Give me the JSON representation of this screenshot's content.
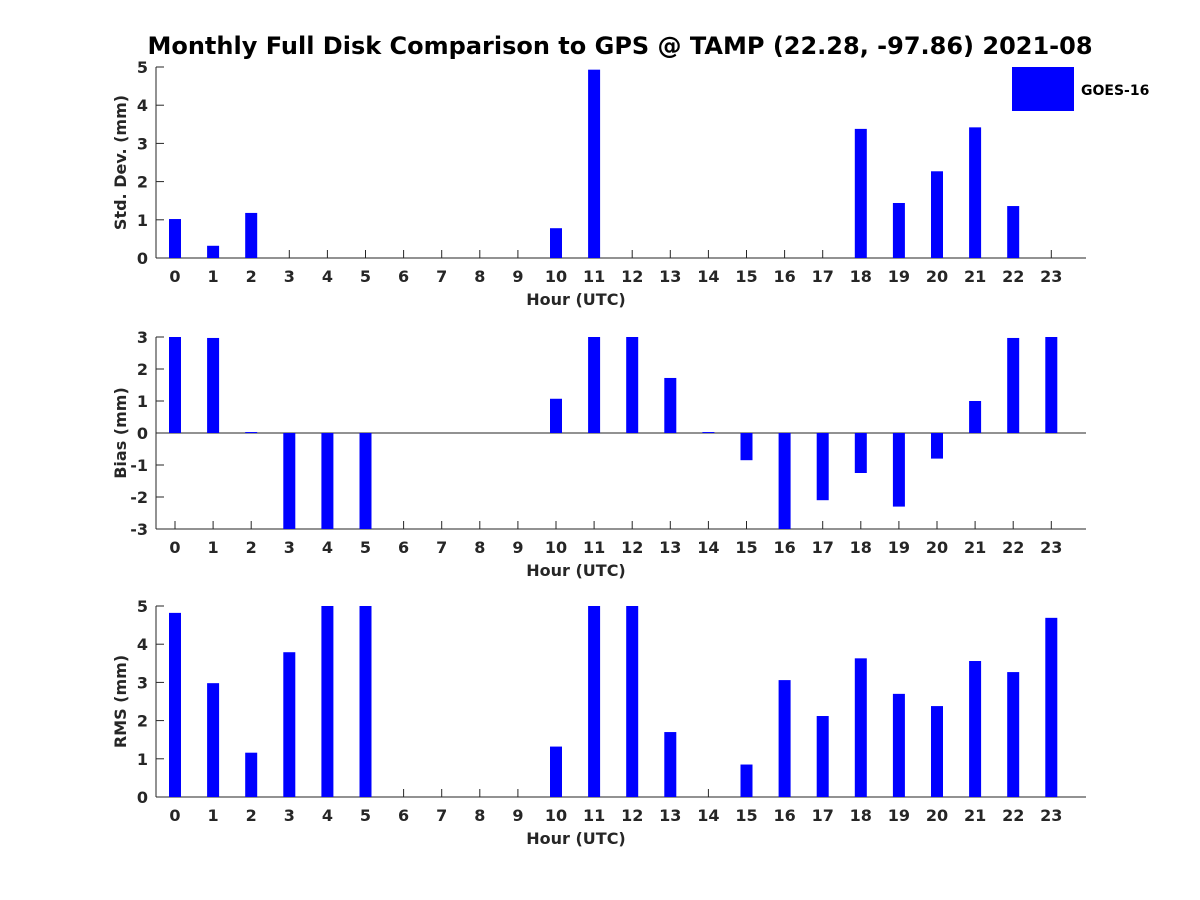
{
  "title": "Monthly Full Disk Comparison to GPS @ TAMP (22.28, -97.86) 2021-08",
  "legend": {
    "label": "GOES-16",
    "color": "#0000ff"
  },
  "chart_data": [
    {
      "type": "bar",
      "categories": [
        "0",
        "1",
        "2",
        "3",
        "4",
        "5",
        "6",
        "7",
        "8",
        "9",
        "10",
        "11",
        "12",
        "13",
        "14",
        "15",
        "16",
        "17",
        "18",
        "19",
        "20",
        "21",
        "22",
        "23"
      ],
      "series": [
        {
          "values": [
            1.02,
            0.32,
            1.18,
            null,
            null,
            null,
            null,
            null,
            null,
            null,
            0.78,
            4.93,
            null,
            null,
            null,
            null,
            null,
            null,
            3.38,
            1.44,
            2.27,
            3.42,
            1.36,
            null
          ]
        }
      ],
      "xlabel": "Hour (UTC)",
      "ylabel": "Std. Dev. (mm)",
      "ylim": [
        0,
        5
      ],
      "yticks": [
        "0",
        "1",
        "2",
        "3",
        "4",
        "5"
      ],
      "legend_position": "top-right"
    },
    {
      "type": "bar",
      "categories": [
        "0",
        "1",
        "2",
        "3",
        "4",
        "5",
        "6",
        "7",
        "8",
        "9",
        "10",
        "11",
        "12",
        "13",
        "14",
        "15",
        "16",
        "17",
        "18",
        "19",
        "20",
        "21",
        "22",
        "23"
      ],
      "series": [
        {
          "values": [
            3.0,
            2.97,
            0.03,
            -3.0,
            -3.0,
            -3.0,
            null,
            null,
            null,
            null,
            1.07,
            3.0,
            3.0,
            1.72,
            0.03,
            -0.85,
            -3.0,
            -2.1,
            -1.25,
            -2.3,
            -0.8,
            1.0,
            2.97,
            3.0
          ]
        }
      ],
      "xlabel": "Hour (UTC)",
      "ylabel": "Bias (mm)",
      "ylim": [
        -3,
        3
      ],
      "yticks": [
        "-3",
        "-2",
        "-1",
        "0",
        "1",
        "2",
        "3"
      ]
    },
    {
      "type": "bar",
      "categories": [
        "0",
        "1",
        "2",
        "3",
        "4",
        "5",
        "6",
        "7",
        "8",
        "9",
        "10",
        "11",
        "12",
        "13",
        "14",
        "15",
        "16",
        "17",
        "18",
        "19",
        "20",
        "21",
        "22",
        "23"
      ],
      "series": [
        {
          "values": [
            4.82,
            2.98,
            1.16,
            3.79,
            5.0,
            5.0,
            null,
            null,
            null,
            null,
            1.32,
            5.0,
            5.0,
            1.7,
            null,
            0.85,
            3.06,
            2.12,
            3.63,
            2.7,
            2.38,
            3.56,
            3.27,
            4.69
          ]
        }
      ],
      "xlabel": "Hour (UTC)",
      "ylabel": "RMS (mm)",
      "ylim": [
        0,
        5
      ],
      "yticks": [
        "0",
        "1",
        "2",
        "3",
        "4",
        "5"
      ]
    }
  ]
}
